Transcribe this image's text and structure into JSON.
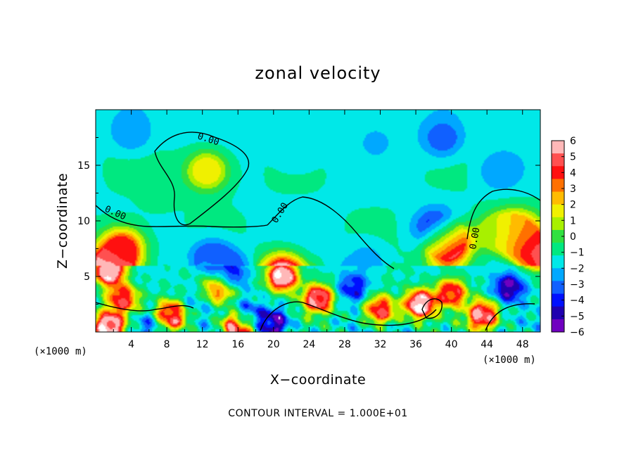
{
  "chart_data": {
    "type": "heatmap",
    "title": "zonal velocity",
    "xlabel": "X−coordinate",
    "ylabel": "Z−coordinate",
    "x_unit_note_left": "(×1000 m)",
    "x_unit_note_right": "(×1000 m)",
    "xlim": [
      0,
      50
    ],
    "ylim": [
      0,
      20
    ],
    "x_ticks": [
      4,
      8,
      12,
      16,
      20,
      24,
      28,
      32,
      36,
      40,
      44,
      48
    ],
    "y_ticks": [
      5,
      10,
      15
    ],
    "colorbar": {
      "levels": [
        6,
        5,
        4,
        3,
        2,
        1,
        0,
        -1,
        -2,
        -3,
        -4,
        -5,
        -6
      ],
      "labels": [
        "6",
        "5",
        "4",
        "3",
        "2",
        "1",
        "0",
        "−1",
        "−2",
        "−3",
        "−4",
        "−5",
        "−6"
      ],
      "colors": [
        "#ffb8b8",
        "#ff5050",
        "#ff1010",
        "#ff7000",
        "#ffbb00",
        "#f0f000",
        "#a8f000",
        "#30e040",
        "#00e880",
        "#00e8e8",
        "#00a8ff",
        "#1060ff",
        "#0010ff",
        "#2000b0",
        "#7000c0"
      ]
    },
    "contour_label": "0.00",
    "contour_interval_text": "CONTOUR INTERVAL = 1.000E+01",
    "features": [
      {
        "x": 12.5,
        "z": 14.5,
        "value": 1.5
      },
      {
        "x": 39.5,
        "z": 8.0,
        "value": 7.0
      },
      {
        "x": 38.5,
        "z": 9.0,
        "value": -6.0
      },
      {
        "x": 15.0,
        "z": 5.0,
        "value": -5.0
      },
      {
        "x": 13.0,
        "z": 6.5,
        "value": -3.5
      },
      {
        "x": 21.0,
        "z": 5.0,
        "value": 6.0
      },
      {
        "x": 1.5,
        "z": 5.5,
        "value": 6.0
      },
      {
        "x": 3.0,
        "z": 7.5,
        "value": 3.5
      },
      {
        "x": 47.5,
        "z": 9.0,
        "value": 3.0
      },
      {
        "x": 49.5,
        "z": 7.0,
        "value": 5.0
      },
      {
        "x": 46.5,
        "z": 4.0,
        "value": -5.0
      },
      {
        "x": 36.5,
        "z": 2.5,
        "value": 6.0
      },
      {
        "x": 40.0,
        "z": 3.5,
        "value": 4.0
      },
      {
        "x": 14.0,
        "z": 4.0,
        "value": 4.0
      },
      {
        "x": 4.0,
        "z": 18.0,
        "value": -2.5
      },
      {
        "x": 39.0,
        "z": 17.5,
        "value": -3.0
      },
      {
        "x": 31.5,
        "z": 17.0,
        "value": -2.0
      },
      {
        "x": 22.5,
        "z": 16.5,
        "value": -2.0
      },
      {
        "x": 45.5,
        "z": 14.5,
        "value": -2.5
      },
      {
        "x": 30.5,
        "z": 6.5,
        "value": -2.0
      },
      {
        "x": 29.0,
        "z": 4.0,
        "value": -4.0
      },
      {
        "x": 3.0,
        "z": 3.0,
        "value": 4.0
      },
      {
        "x": 25.0,
        "z": 3.0,
        "value": 5.0
      },
      {
        "x": 32.0,
        "z": 2.0,
        "value": 4.0
      },
      {
        "x": 8.5,
        "z": 1.5,
        "value": 5.0
      },
      {
        "x": 17.0,
        "z": 1.5,
        "value": -4.0
      },
      {
        "x": 20.0,
        "z": 0.8,
        "value": -5.0
      },
      {
        "x": 43.5,
        "z": 1.5,
        "value": 5.0
      },
      {
        "x": 16.0,
        "z": 0.5,
        "value": 6.0
      },
      {
        "x": 1.5,
        "z": 0.5,
        "value": 6.0
      },
      {
        "x": 6.0,
        "z": 0.5,
        "value": -3.0
      },
      {
        "x": 11.0,
        "z": 2.5,
        "value": -2.0
      },
      {
        "x": 45.0,
        "z": 9.0,
        "value": 0.5
      },
      {
        "x": 7.0,
        "z": 12.5,
        "value": -1.0
      }
    ]
  }
}
